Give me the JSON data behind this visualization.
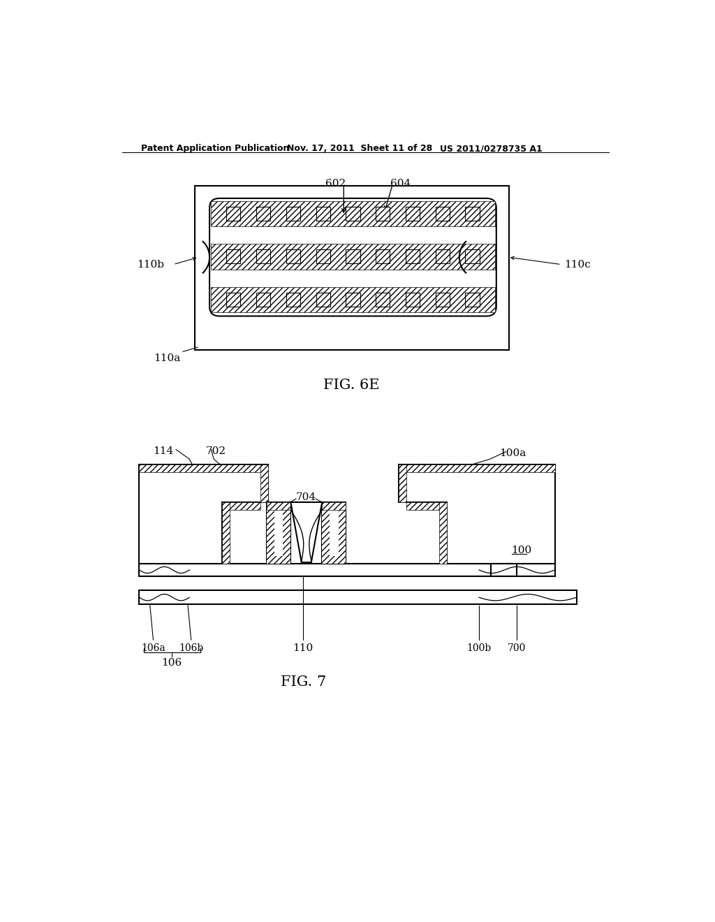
{
  "bg_color": "#ffffff",
  "header_left": "Patent Application Publication",
  "header_mid": "Nov. 17, 2011  Sheet 11 of 28",
  "header_right": "US 2011/0278735 A1",
  "fig6e_label": "FIG. 6E",
  "fig7_label": "FIG. 7"
}
